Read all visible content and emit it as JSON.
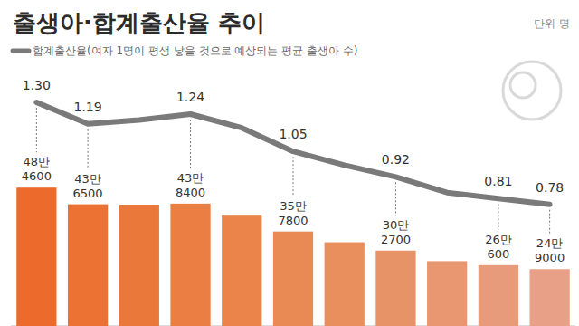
{
  "chart_data": {
    "type": "bar",
    "title": "출생아·합계출산율 추이",
    "annotation": "단위 명",
    "categories": [
      null,
      null,
      null,
      null,
      null,
      null,
      null,
      null,
      null,
      null,
      null
    ],
    "tick_labels": false,
    "data_labels": true,
    "legend": "top-left",
    "ylim": [
      85000,
      765000
    ],
    "y2lim": [
      0.16,
      1.36
    ],
    "series": [
      {
        "type": "bar",
        "colors": [
          "#ec6b2c",
          "#ec7233",
          "#eb783b",
          "#ea7e43",
          "#ea844b",
          "#e98a55",
          "#e98f5e",
          "#e89367",
          "#e89771",
          "#e89b7b",
          "#e8a086"
        ],
        "values": [
          484600,
          436500,
          435400,
          438400,
          406200,
          357800,
          326800,
          302700,
          272300,
          260600,
          249000
        ],
        "value_labels": [
          "48만 4600",
          "43만 6500",
          null,
          "43만 8400",
          null,
          "35만 7800",
          null,
          "30만 2700",
          null,
          "26만 600",
          "24만 9000"
        ]
      },
      {
        "name": "합계출산율(여자 1명이 평생 낳을 것으로 예상되는 평균 출생아 수)",
        "type": "line",
        "axis": "y2",
        "color": "#7a7a7a",
        "values": [
          1.3,
          1.19,
          1.21,
          1.24,
          1.17,
          1.05,
          0.98,
          0.92,
          0.84,
          0.81,
          0.78
        ],
        "value_labels": [
          "1.30",
          "1.19",
          null,
          "1.24",
          null,
          "1.05",
          null,
          "0.92",
          null,
          "0.81",
          "0.78"
        ]
      }
    ]
  }
}
